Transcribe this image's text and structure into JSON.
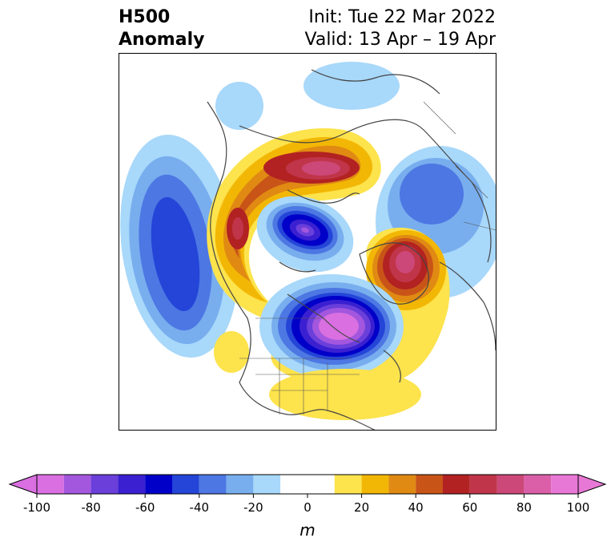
{
  "header": {
    "title_line1": "H500",
    "title_line2": "Anomaly",
    "init_label": "Init: Tue 22 Mar 2022",
    "valid_label": "Valid: 13 Apr – 19 Apr"
  },
  "colorbar": {
    "unit": "m",
    "tick_labels": [
      "-100",
      "-80",
      "-60",
      "-40",
      "-20",
      "0",
      "20",
      "40",
      "60",
      "80",
      "100"
    ],
    "bins": [
      {
        "from": -100,
        "to": -90,
        "color": "#d96fe0"
      },
      {
        "from": -90,
        "to": -80,
        "color": "#a357de"
      },
      {
        "from": -80,
        "to": -70,
        "color": "#6a3fda"
      },
      {
        "from": -70,
        "to": -60,
        "color": "#3a20d0"
      },
      {
        "from": -60,
        "to": -50,
        "color": "#0000c8"
      },
      {
        "from": -50,
        "to": -40,
        "color": "#2445d8"
      },
      {
        "from": -40,
        "to": -30,
        "color": "#4d77e3"
      },
      {
        "from": -30,
        "to": -20,
        "color": "#78aeee"
      },
      {
        "from": -20,
        "to": -10,
        "color": "#a8d8fa"
      },
      {
        "from": -10,
        "to": 10,
        "color": "#ffffff"
      },
      {
        "from": 10,
        "to": 20,
        "color": "#fde34c"
      },
      {
        "from": 20,
        "to": 30,
        "color": "#f2b705"
      },
      {
        "from": 30,
        "to": 40,
        "color": "#e08a13"
      },
      {
        "from": 40,
        "to": 50,
        "color": "#c95418"
      },
      {
        "from": 50,
        "to": 60,
        "color": "#b22222"
      },
      {
        "from": 60,
        "to": 70,
        "color": "#c0354a"
      },
      {
        "from": 70,
        "to": 80,
        "color": "#cc4878"
      },
      {
        "from": 80,
        "to": 90,
        "color": "#db5fa8"
      },
      {
        "from": 90,
        "to": 100,
        "color": "#e878d6"
      }
    ],
    "extend_low_color": "#d96fe0",
    "extend_high_color": "#e878d6"
  }
}
